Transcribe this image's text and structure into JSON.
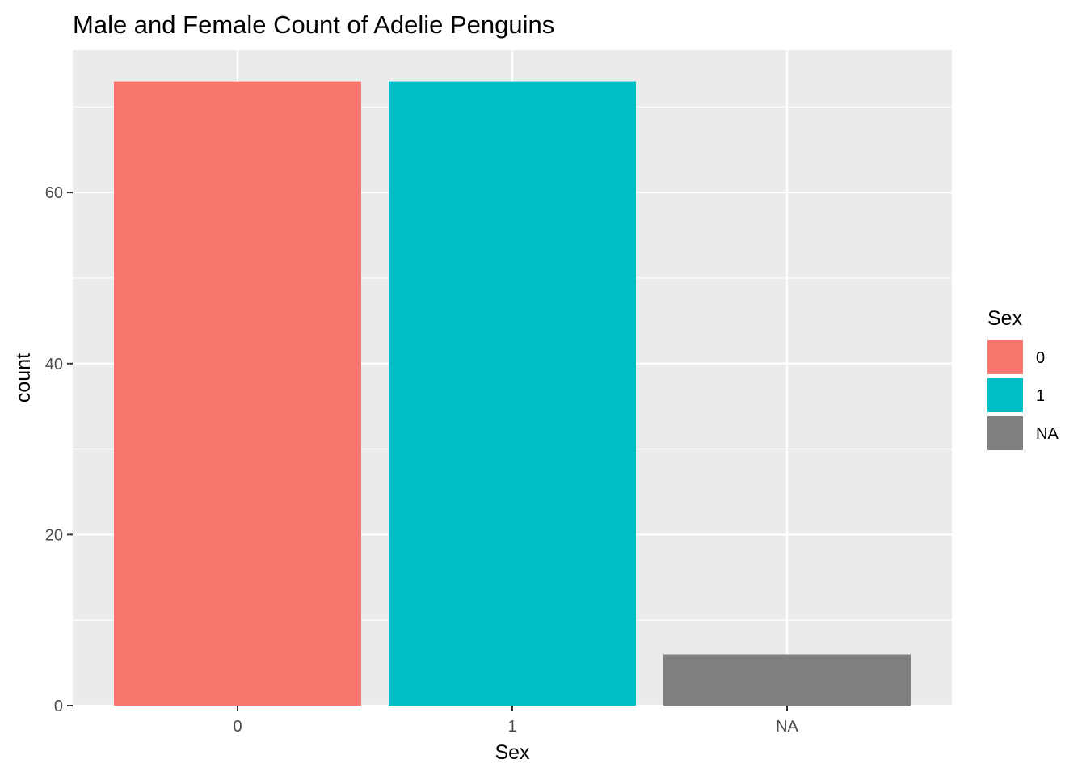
{
  "chart_data": {
    "type": "bar",
    "title": "Male and Female Count of Adelie Penguins",
    "xlabel": "Sex",
    "ylabel": "count",
    "categories": [
      "0",
      "1",
      "NA"
    ],
    "values": [
      73,
      73,
      6
    ],
    "colors": [
      "#F8766D",
      "#00BFC4",
      "#7F7F7F"
    ],
    "ylim": [
      0,
      76.65
    ],
    "y_ticks": [
      0,
      20,
      40,
      60
    ],
    "y_tick_labels": [
      "0",
      "20",
      "40",
      "60"
    ],
    "grid": true,
    "panel_background": "#EBEBEB",
    "grid_color": "#FFFFFF",
    "legend": {
      "title": "Sex",
      "position": "right",
      "entries": [
        {
          "label": "0",
          "color": "#F8766D"
        },
        {
          "label": "1",
          "color": "#00BFC4"
        },
        {
          "label": "NA",
          "color": "#7F7F7F"
        }
      ]
    }
  }
}
